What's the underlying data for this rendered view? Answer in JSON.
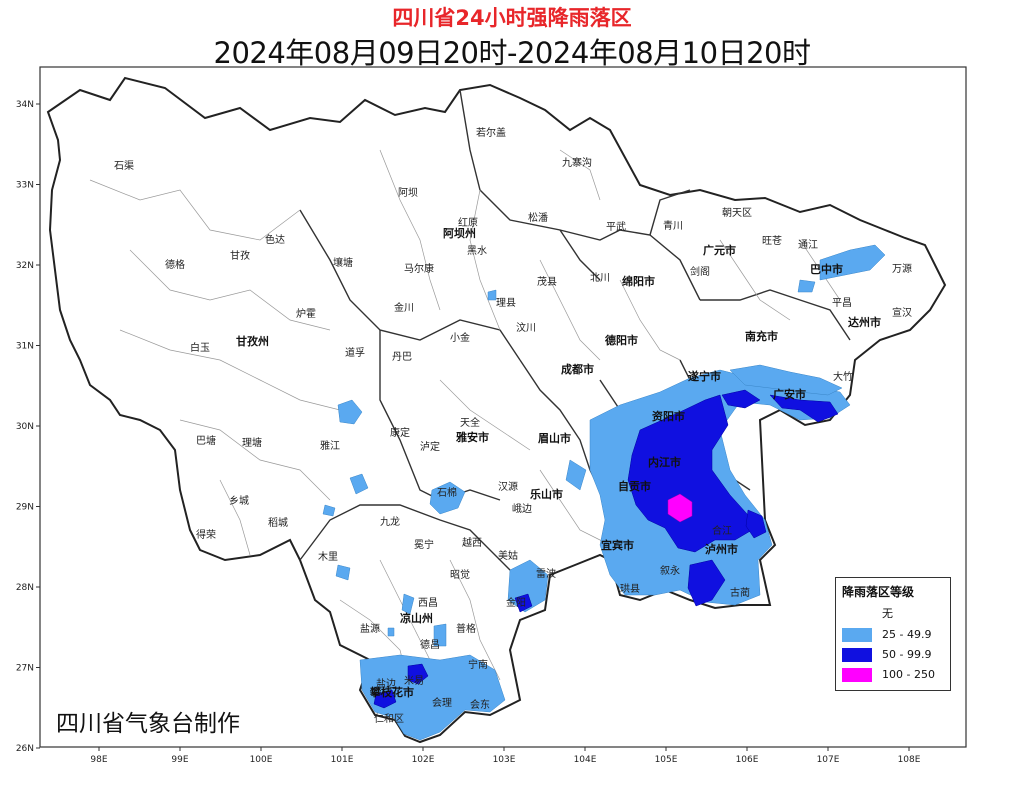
{
  "title": "四川省24小时强降雨落区",
  "subtitle": "2024年08月09日20时-2024年08月10日20时",
  "credit": "四川省气象台制作",
  "axes": {
    "lon_ticks": [
      "98E",
      "99E",
      "100E",
      "101E",
      "102E",
      "103E",
      "104E",
      "105E",
      "106E",
      "107E",
      "108E"
    ],
    "lat_ticks": [
      "34N",
      "33N",
      "32N",
      "31N",
      "30N",
      "29N",
      "28N",
      "27N",
      "26N"
    ]
  },
  "legend": {
    "title": "降雨落区等级",
    "items": [
      {
        "label": "无",
        "color": "#ffffff"
      },
      {
        "label": "25 - 49.9",
        "color": "#5aa9f0"
      },
      {
        "label": "50 - 99.9",
        "color": "#1010e0"
      },
      {
        "label": "100 - 250",
        "color": "#ff00ff"
      }
    ]
  },
  "colors": {
    "rain_25_49": "#5aa9f0",
    "rain_50_99": "#1010e0",
    "rain_100_250": "#ff00ff",
    "border": "#333333",
    "title_red": "#e8262a"
  },
  "places": {
    "shiqu": "石渠",
    "ruoergai": "若尔盖",
    "jiuzhaigou": "九寨沟",
    "aba": "阿坝",
    "hongyuan": "红原",
    "abazhou": "阿坝州",
    "songpan": "松潘",
    "pingwu": "平武",
    "qingchuan": "青川",
    "chaotian": "朝天区",
    "wangcang": "旺苍",
    "tongjiang": "通江",
    "wanyuan": "万源",
    "dege": "德格",
    "seda": "色达",
    "ganzi": "甘孜",
    "rangtang": "壤塘",
    "heishui": "黑水",
    "maerkang": "马尔康",
    "maoxian": "茂县",
    "beichuan": "北川",
    "mianyang": "绵阳市",
    "guangyuan": "广元市",
    "jiange": "剑阁",
    "bazhong": "巴中市",
    "pingchang": "平昌",
    "luxian2": "炉霍",
    "jinchuan": "金川",
    "lixian": "理县",
    "deyang": "德阳市",
    "nanchong": "南充市",
    "dazhou": "达州市",
    "xuanhan": "宣汉",
    "baiyu": "白玉",
    "ganzizhou": "甘孜州",
    "xiaojin": "小金",
    "wenchuan": "汶川",
    "daocheng_daofu": "道孚",
    "danba": "丹巴",
    "chengdu": "成都市",
    "suining": "遂宁市",
    "guangan": "广安市",
    "dazhu": "大竹",
    "batang": "巴塘",
    "litang": "理塘",
    "yajiang": "雅江",
    "kangding": "康定",
    "luding": "泸定",
    "tianquan": "天全",
    "yaan": "雅安市",
    "meishan": "眉山市",
    "ziyang": "资阳市",
    "neijiang": "内江市",
    "zigong": "自贡市",
    "leshan": "乐山市",
    "yibin": "宜宾市",
    "luzhou": "泸州市",
    "xiangcheng": "乡城",
    "daocheng": "稻城",
    "jiulong": "九龙",
    "shimian": "石棉",
    "hanyuan": "汉源",
    "ebian": "峨边",
    "muli": "木里",
    "mianning": "冕宁",
    "yuexi": "越西",
    "meigu": "美姑",
    "leibo": "雷波",
    "xichang": "西昌",
    "liangshan": "凉山州",
    "zhaojue": "昭觉",
    "jinyang": "金阳",
    "ningnan": "宁南",
    "huili": "会理",
    "huidong": "会东",
    "yanbian": "盐边",
    "panzhihua": "攀枝花市",
    "yanyuan": "盐源",
    "dechang": "德昌",
    "pugge": "普格",
    "gulin": "古蔺",
    "xuyong": "叙永",
    "gongxian": "珙县",
    "derong": "得荣",
    "renhe": "仁和区",
    "miyi": "米易",
    "xiangjian": "宁南",
    "hejiang": "合江"
  }
}
